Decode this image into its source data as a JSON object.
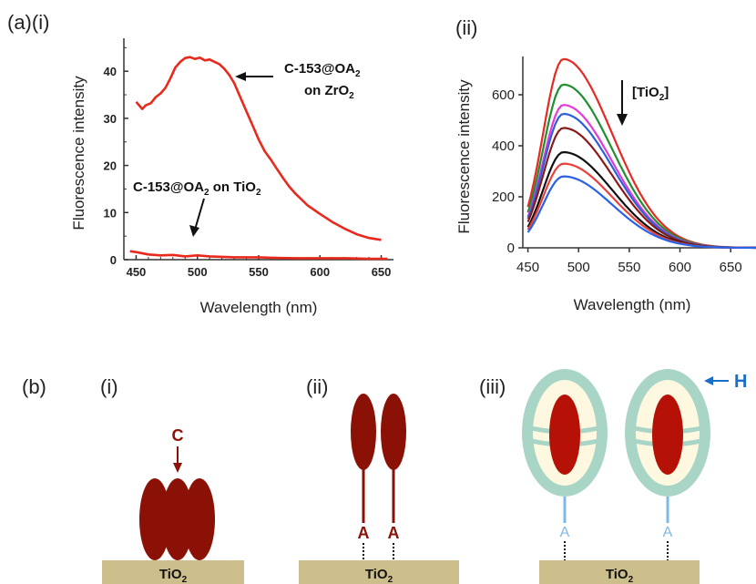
{
  "panel_labels": {
    "a": "(a)",
    "a_i": "(i)",
    "a_ii": "(ii)",
    "b": "(b)",
    "b_i": "(i)",
    "b_ii": "(ii)",
    "b_iii": "(iii)"
  },
  "colors": {
    "red": "#e8291c",
    "bar": "#cdbf8c",
    "ellipse": "#8b1106",
    "ring": "#a8d5c6",
    "ring_fill": "#fdf8df",
    "linker": "#7db9e4",
    "blue_text": "#1a6ec8"
  },
  "chart_data": [
    {
      "id": "a-i",
      "type": "line",
      "xlabel": "Wavelength (nm)",
      "ylabel": "Fluorescence intensity",
      "xlim": [
        440,
        660
      ],
      "ylim": [
        0,
        47
      ],
      "xticks": [
        "450",
        "500",
        "550",
        "600",
        "650"
      ],
      "yticks": [
        "0",
        "10",
        "20",
        "30",
        "40"
      ],
      "annotations": [
        {
          "lines": [
            "C-153@OA",
            "on ZrO"
          ],
          "subs": [
            "2",
            "2"
          ]
        },
        {
          "lines": [
            "C-153@OA on TiO"
          ],
          "subs": [
            "2",
            "2"
          ]
        }
      ],
      "series": [
        {
          "color": "#e8291c",
          "x": [
            450,
            455,
            458,
            462,
            466,
            470,
            474,
            478,
            482,
            486,
            490,
            494,
            498,
            502,
            506,
            510,
            514,
            518,
            522,
            526,
            530,
            535,
            540,
            545,
            550,
            555,
            560,
            565,
            570,
            575,
            580,
            590,
            600,
            610,
            620,
            630,
            640,
            650
          ],
          "y": [
            33.5,
            32,
            32.8,
            33.2,
            34.5,
            35.3,
            36.5,
            38.5,
            40.8,
            42,
            42.8,
            43,
            42.6,
            42.9,
            42.3,
            42.5,
            42,
            41.5,
            40.5,
            39.2,
            37.5,
            34.5,
            31.5,
            28.5,
            25.5,
            23,
            21.2,
            19.2,
            17.3,
            15.5,
            14,
            11.5,
            9.7,
            8,
            6.6,
            5.4,
            4.6,
            4.2
          ]
        },
        {
          "color": "#e8291c",
          "x": [
            445,
            450,
            460,
            470,
            480,
            490,
            500,
            510,
            520,
            530,
            540,
            550,
            560,
            580,
            600,
            620,
            640,
            655
          ],
          "y": [
            1.8,
            1.6,
            1.1,
            0.9,
            1.0,
            0.7,
            0.9,
            0.7,
            0.6,
            0.5,
            0.5,
            0.5,
            0.4,
            0.3,
            0.3,
            0.3,
            0.2,
            0.2
          ]
        }
      ]
    },
    {
      "id": "a-ii",
      "type": "line",
      "xlabel": "Wavelength (nm)",
      "ylabel": "Fluorescence intensity",
      "xlim": [
        445,
        675
      ],
      "ylim": [
        0,
        750
      ],
      "xticks": [
        "450",
        "500",
        "550",
        "600",
        "650"
      ],
      "yticks": [
        "0",
        "200",
        "400",
        "600"
      ],
      "annotation": {
        "text": "[TiO",
        "sub": "2",
        "close": "]"
      },
      "series": [
        {
          "color": "#e52a21",
          "peak": 740
        },
        {
          "color": "#1e8f2f",
          "peak": 640
        },
        {
          "color": "#e23bd8",
          "peak": 560
        },
        {
          "color": "#2f5fd6",
          "peak": 525
        },
        {
          "color": "#8a1a1a",
          "peak": 470
        },
        {
          "color": "#111111",
          "peak": 375
        },
        {
          "color": "#e8403a",
          "peak": 330
        },
        {
          "color": "#2a62e6",
          "peak": 280
        }
      ]
    }
  ],
  "diagram": {
    "substrate_label": "TiO",
    "substrate_sub": "2",
    "c_label": "C",
    "a_label": "A",
    "h_label": "H"
  }
}
